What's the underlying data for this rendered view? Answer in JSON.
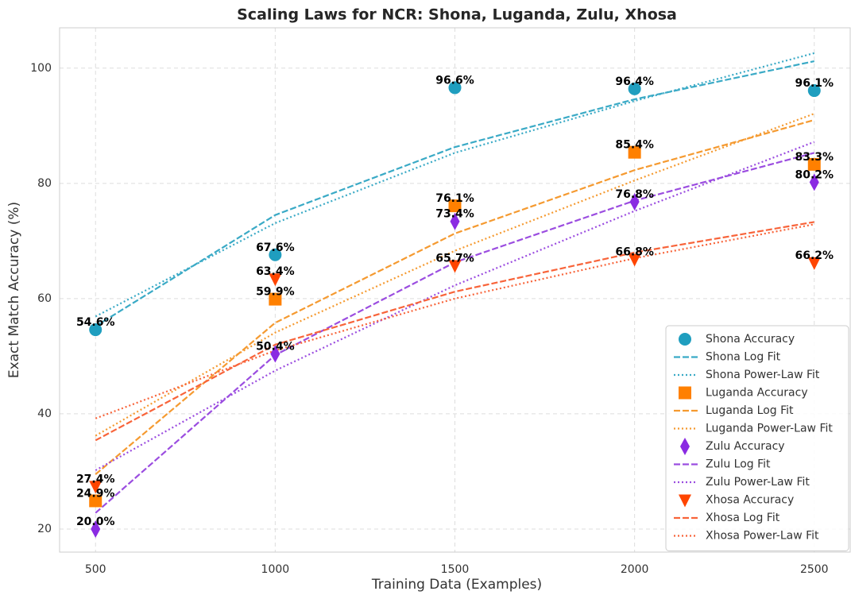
{
  "chart_data": {
    "type": "scatter",
    "title": "Scaling Laws for NCR: Shona, Luganda, Zulu, Xhosa",
    "xlabel": "Training Data (Examples)",
    "ylabel": "Exact Match Accuracy (%)",
    "x": [
      500,
      1000,
      1500,
      2000,
      2500
    ],
    "xlim": [
      400,
      2600
    ],
    "xticks": [
      500,
      1000,
      1500,
      2000,
      2500
    ],
    "ylim": [
      16,
      107
    ],
    "yticks": [
      20,
      40,
      60,
      80,
      100
    ],
    "grid": true,
    "legend": "lower right",
    "series": [
      {
        "name": "Shona Accuracy",
        "color": "#1f9ebf",
        "style": "circle",
        "values": [
          54.6,
          67.6,
          96.6,
          96.4,
          96.1
        ],
        "value_labels": [
          "54.6%",
          "67.6%",
          "96.6%",
          "96.4%",
          "96.1%"
        ]
      },
      {
        "name": "Shona Log Fit",
        "color": "#3aaac6",
        "style": "dashed",
        "values": [
          55.2,
          74.5,
          86.3,
          94.6,
          101.2
        ]
      },
      {
        "name": "Shona Power-Law Fit",
        "color": "#3aaac6",
        "style": "dotted",
        "values": [
          56.9,
          73.1,
          85.3,
          94.3,
          102.6
        ]
      },
      {
        "name": "Luganda Accuracy",
        "color": "#ff8000",
        "style": "square",
        "values": [
          24.9,
          59.9,
          76.1,
          85.4,
          83.3
        ],
        "value_labels": [
          "24.9%",
          "59.9%",
          "76.1%",
          "85.4%",
          "83.3%"
        ]
      },
      {
        "name": "Luganda Log Fit",
        "color": "#f59a30",
        "style": "dashed",
        "values": [
          29.5,
          55.8,
          71.3,
          82.3,
          91.0
        ]
      },
      {
        "name": "Luganda Power-Law Fit",
        "color": "#f59a30",
        "style": "dotted",
        "values": [
          36.2,
          54.1,
          68.3,
          80.5,
          92.1
        ]
      },
      {
        "name": "Zulu Accuracy",
        "color": "#8a2be2",
        "style": "diamond",
        "values": [
          20.0,
          50.4,
          73.4,
          76.8,
          80.2
        ],
        "value_labels": [
          "20.0%",
          "50.4%",
          "73.4%",
          "76.8%",
          "80.2%"
        ]
      },
      {
        "name": "Zulu Log Fit",
        "color": "#9b4de0",
        "style": "dashed",
        "values": [
          22.8,
          50.2,
          66.3,
          77.0,
          85.3
        ]
      },
      {
        "name": "Zulu Power-Law Fit",
        "color": "#9b4de0",
        "style": "dotted",
        "values": [
          30.2,
          47.5,
          62.3,
          75.2,
          87.2
        ]
      },
      {
        "name": "Xhosa Accuracy",
        "color": "#ff4500",
        "style": "triangle",
        "values": [
          27.4,
          63.4,
          65.7,
          66.8,
          66.2
        ],
        "value_labels": [
          "27.4%",
          "63.4%",
          "65.7%",
          "66.8%",
          "66.2%"
        ]
      },
      {
        "name": "Xhosa Log Fit",
        "color": "#f8643a",
        "style": "dashed",
        "values": [
          35.4,
          52.0,
          61.2,
          68.0,
          73.3
        ]
      },
      {
        "name": "Xhosa Power-Law Fit",
        "color": "#f8643a",
        "style": "dotted",
        "values": [
          39.2,
          51.0,
          60.0,
          67.0,
          72.9
        ]
      }
    ]
  }
}
